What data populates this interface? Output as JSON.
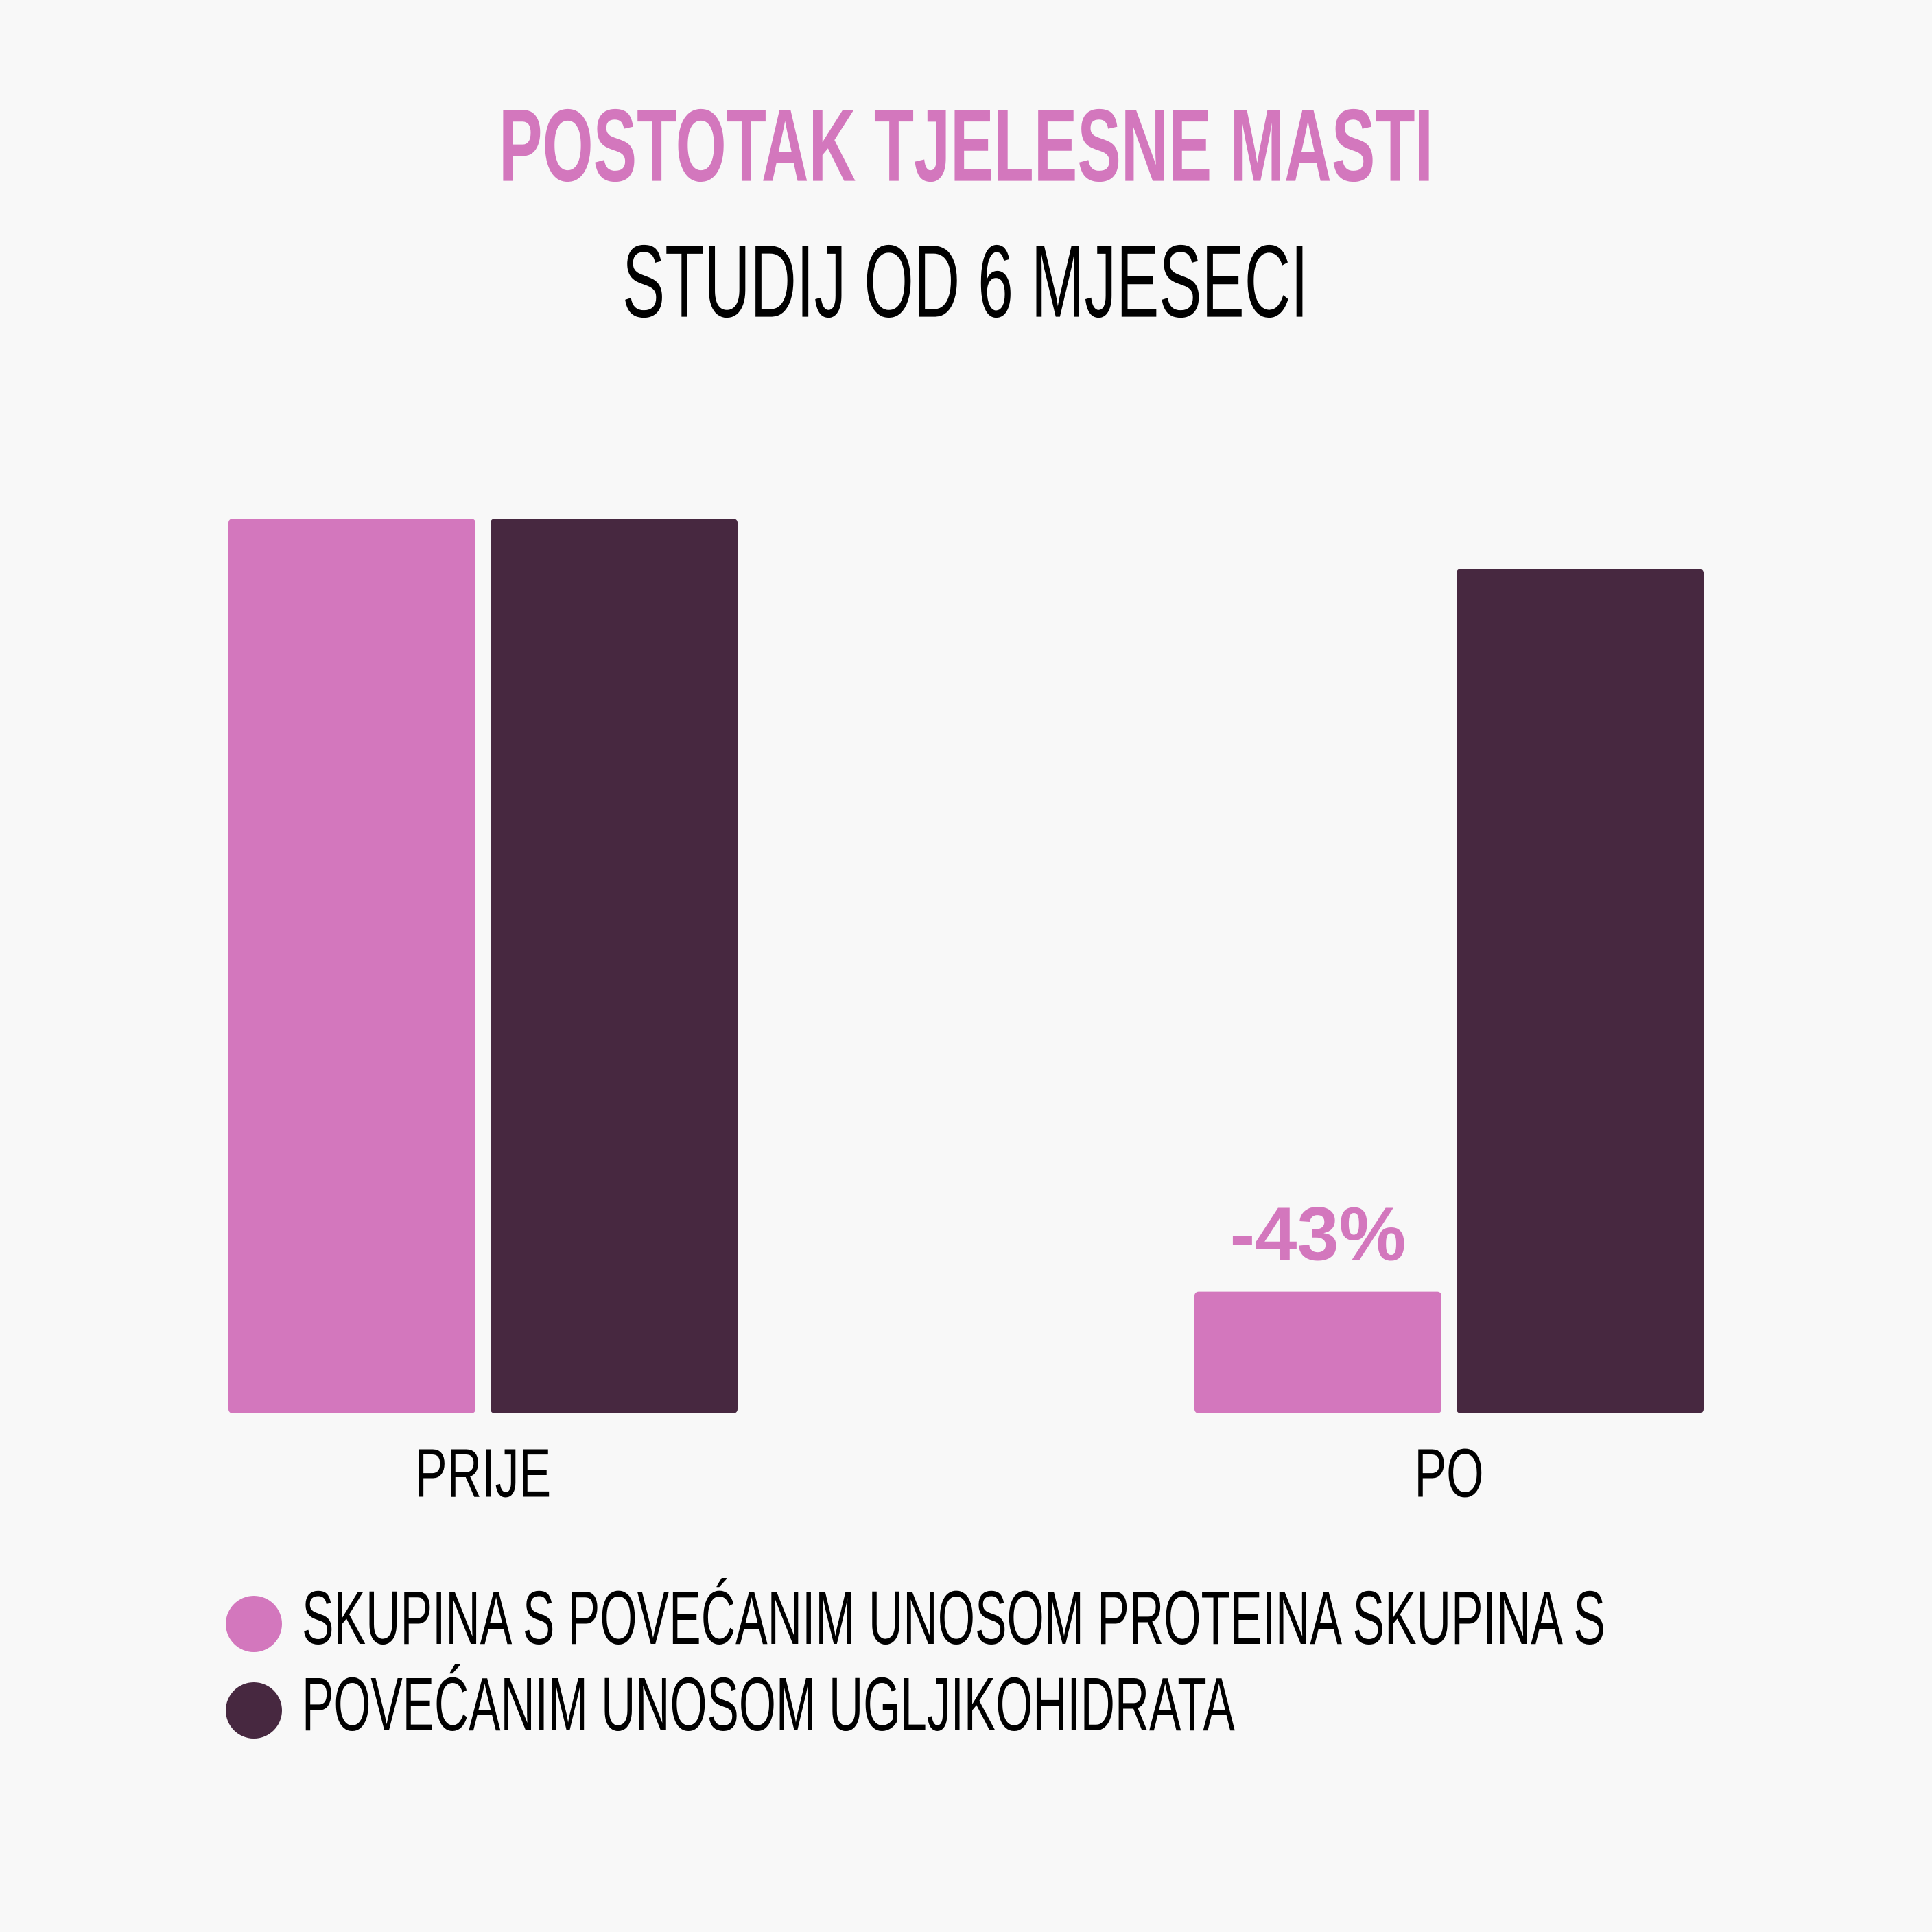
{
  "chart_data": {
    "type": "bar",
    "title": "POSTOTAK TJELESNE MASTI",
    "subtitle": "STUDIJ OD 6 MJESECI",
    "categories": [
      "PRIJE",
      "PO"
    ],
    "series": [
      {
        "name": "SKUPINA S POVEĆANIM UNOSOM PROTEINA SKUPINA S",
        "color": "#d377bd",
        "values": [
          100,
          13.6
        ]
      },
      {
        "name": "POVEĆANIM UNOSOM UGLJIKOHIDRATA",
        "color": "#472840",
        "values": [
          100,
          94.4
        ]
      }
    ],
    "annotation": "-43%",
    "ylim": [
      0,
      100
    ]
  }
}
